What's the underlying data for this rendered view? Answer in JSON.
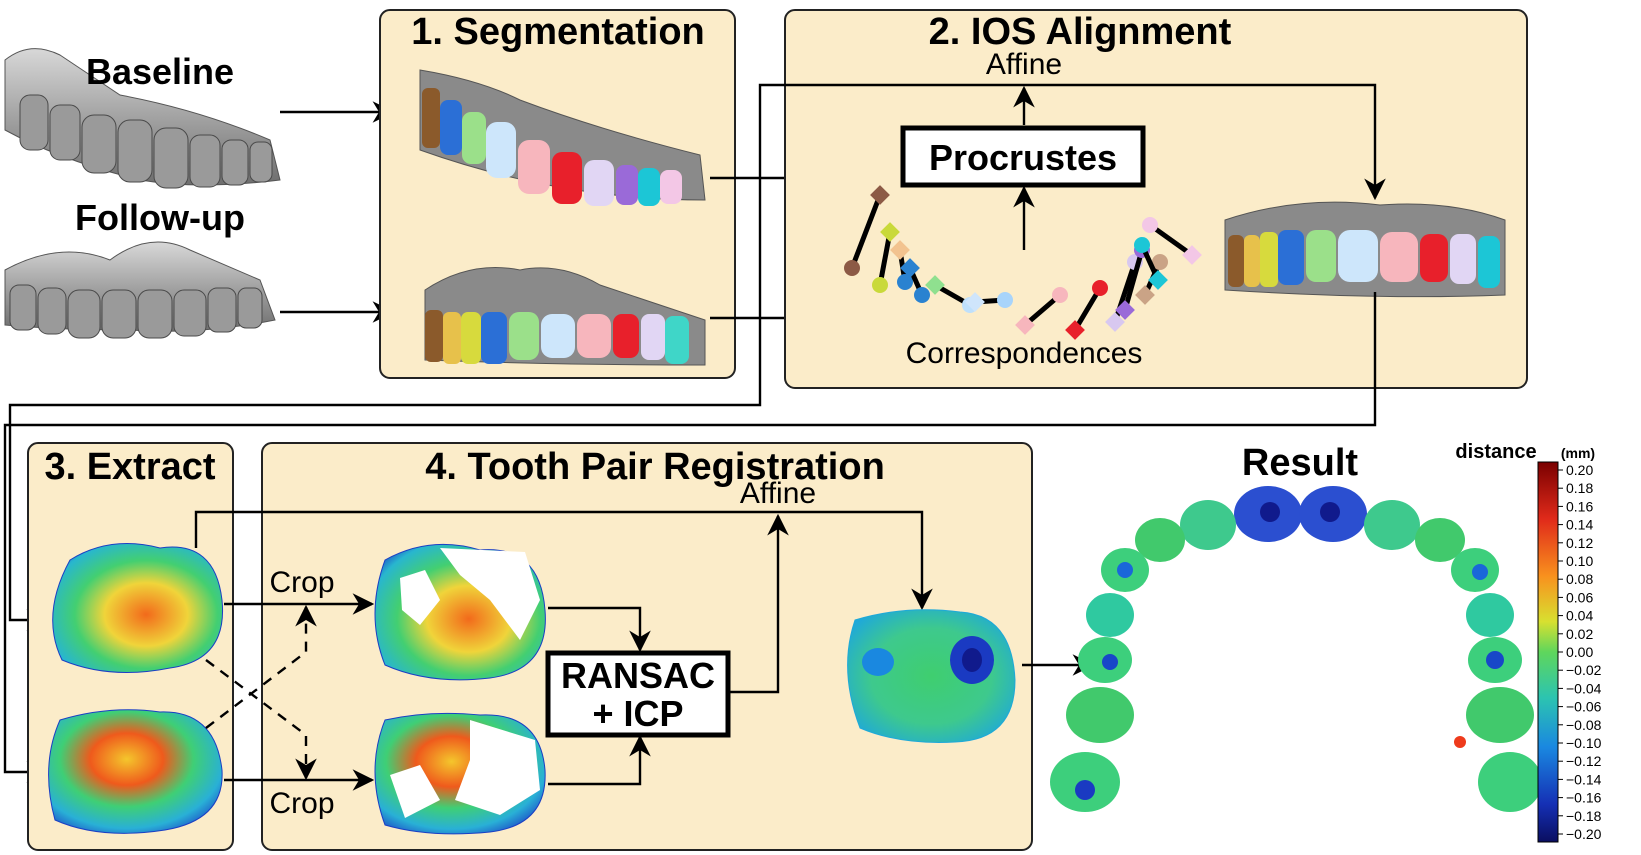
{
  "inputs": {
    "baseline": "Baseline",
    "followup": "Follow-up"
  },
  "panels": {
    "segmentation": "1. Segmentation",
    "alignment": "2. IOS Alignment",
    "extract": "3. Extract",
    "registration": "4. Tooth Pair Registration"
  },
  "alignment": {
    "affine": "Affine",
    "procrustes": "Procrustes",
    "correspondences": "Correspondences"
  },
  "registration": {
    "affine": "Affine",
    "crop_top": "Crop",
    "crop_bottom": "Crop",
    "ransac_line1": "RANSAC",
    "ransac_line2": "+ ICP"
  },
  "result": {
    "title": "Result"
  },
  "colorbar": {
    "title": "distance",
    "unit": "(mm)",
    "ticks": [
      "0.20",
      "0.18",
      "0.16",
      "0.14",
      "0.12",
      "0.10",
      "0.08",
      "0.06",
      "0.04",
      "0.02",
      "0.00",
      "−0.02",
      "−0.04",
      "−0.06",
      "−0.08",
      "−0.10",
      "−0.12",
      "−0.14",
      "−0.16",
      "−0.18",
      "−0.20"
    ],
    "colors": [
      "#7a0000",
      "#a50f0f",
      "#d42020",
      "#ee3b1c",
      "#f5651c",
      "#f8911e",
      "#f7b728",
      "#e8d82e",
      "#bde33a",
      "#8fdc47",
      "#5fd65c",
      "#3dd07c",
      "#2fc9a0",
      "#27bcc4",
      "#1ea5db",
      "#1a88e0",
      "#1a67d9",
      "#1847c8",
      "#152cb0",
      "#101a8c",
      "#0a0e60"
    ]
  },
  "colors": {
    "panel_fill": "#fbecc9",
    "gingiva": "#8c8c8c",
    "tooth_gray": "#b8b8b8"
  }
}
